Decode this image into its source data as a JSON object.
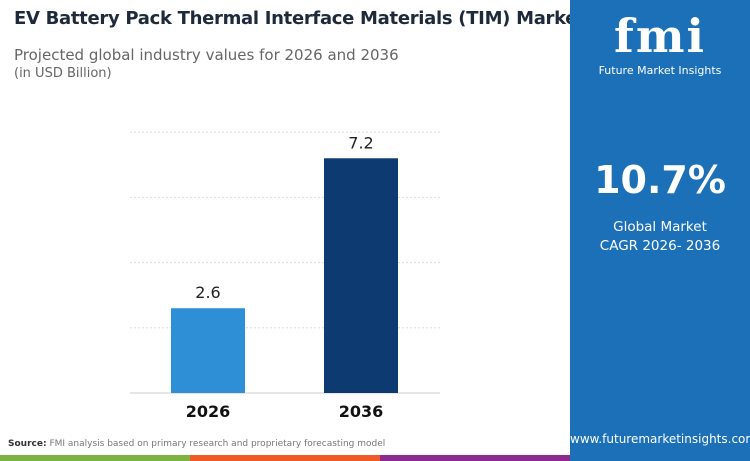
{
  "title": "EV Battery Pack Thermal Interface Materials (TIM) Market",
  "subtitle": "Projected global industry values for 2026 and 2036",
  "unit": "(in USD Billion)",
  "chart_data": {
    "type": "bar",
    "categories": [
      "2026",
      "2036"
    ],
    "values": [
      2.6,
      7.2
    ],
    "ylim": [
      0,
      8
    ],
    "grid": true,
    "colors": [
      "#2e8fd6",
      "#0e3a72"
    ]
  },
  "side": {
    "logo": "fmi",
    "logo_sub": "Future Market Insights",
    "cagr": "10.7%",
    "cagr_label1": "Global Market",
    "cagr_label2": "CAGR 2026- 2036",
    "url": "www.futuremarketinsights.com"
  },
  "source": {
    "label": "Source:",
    "text": "FMI analysis based on primary research and proprietary forecasting model"
  },
  "colors": {
    "panel": "#1b70b8",
    "stripes": [
      "#7cb342",
      "#f05a28",
      "#8e2a8e"
    ]
  }
}
